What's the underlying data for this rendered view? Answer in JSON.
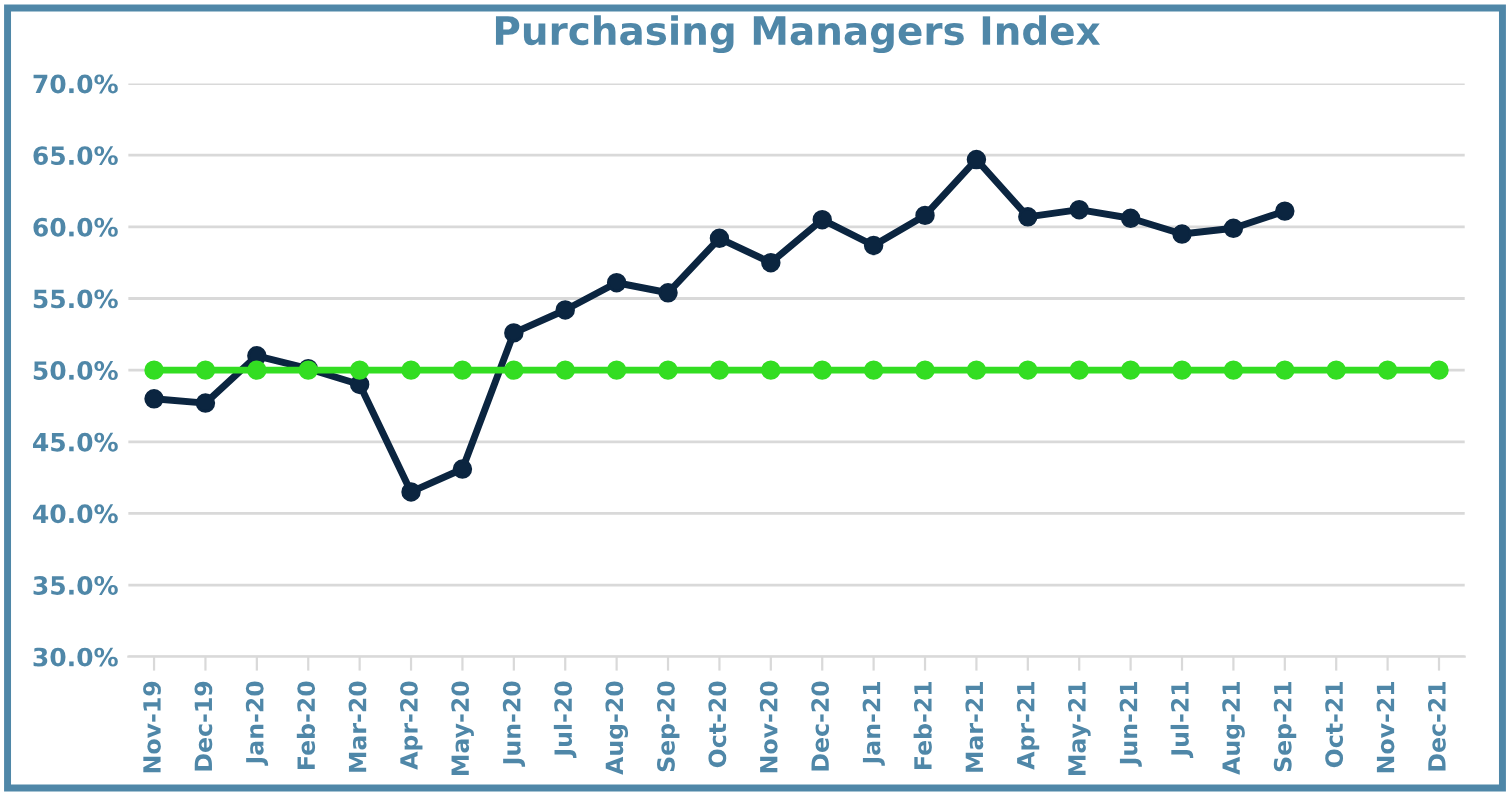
{
  "chart_data": {
    "type": "line",
    "title": "Purchasing Managers Index",
    "categories": [
      "Nov-19",
      "Dec-19",
      "Jan-20",
      "Feb-20",
      "Mar-20",
      "Apr-20",
      "May-20",
      "Jun-20",
      "Jul-20",
      "Aug-20",
      "Sep-20",
      "Oct-20",
      "Nov-20",
      "Dec-20",
      "Jan-21",
      "Feb-21",
      "Mar-21",
      "Apr-21",
      "May-21",
      "Jun-21",
      "Jul-21",
      "Aug-21",
      "Sep-21",
      "Oct-21",
      "Nov-21",
      "Dec-21"
    ],
    "series": [
      {
        "color": "#0b2540",
        "values": [
          48.0,
          47.7,
          51.0,
          50.1,
          49.0,
          41.5,
          43.1,
          52.6,
          54.2,
          56.1,
          55.4,
          59.2,
          57.5,
          60.5,
          58.7,
          60.8,
          64.7,
          60.7,
          61.2,
          60.6,
          59.5,
          59.9,
          61.1,
          null,
          null,
          null
        ]
      },
      {
        "color": "#33dd22",
        "values": [
          50,
          50,
          50,
          50,
          50,
          50,
          50,
          50,
          50,
          50,
          50,
          50,
          50,
          50,
          50,
          50,
          50,
          50,
          50,
          50,
          50,
          50,
          50,
          50,
          50,
          50
        ]
      }
    ],
    "ylim": [
      30,
      70
    ],
    "yticks": [
      {
        "value": 30,
        "label": "30.0%"
      },
      {
        "value": 35,
        "label": "35.0%"
      },
      {
        "value": 40,
        "label": "40.0%"
      },
      {
        "value": 45,
        "label": "45.0%"
      },
      {
        "value": 50,
        "label": "50.0%"
      },
      {
        "value": 55,
        "label": "55.0%"
      },
      {
        "value": 60,
        "label": "60.0%"
      },
      {
        "value": 65,
        "label": "65.0%"
      },
      {
        "value": 70,
        "label": "70.0%"
      }
    ],
    "grid": "y",
    "legend": false,
    "marker": "circle",
    "line_style": "solid"
  }
}
